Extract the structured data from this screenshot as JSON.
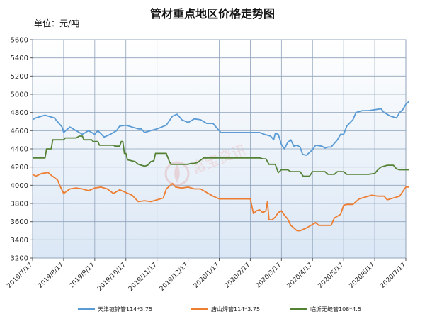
{
  "chart_data": {
    "type": "line",
    "title": "管材重点地区价格走势图",
    "unit": "单位：元/吨",
    "ylim": [
      3200,
      5600
    ],
    "yticks": [
      3200,
      3400,
      3600,
      3800,
      4000,
      4200,
      4400,
      4600,
      4800,
      5000,
      5200,
      5400,
      5600
    ],
    "grid": true,
    "legend_position": "bottom",
    "xticks": [
      "2019/7/17",
      "2019/8/17",
      "2019/9/17",
      "2019/10/17",
      "2019/11/17",
      "2019/12/17",
      "2020/1/17",
      "2020/2/17",
      "2020/3/17",
      "2020/4/17",
      "2020/5/17",
      "2020/6/17",
      "2020/7/17"
    ],
    "series": [
      {
        "name": "天津镀锌管114*3.75",
        "color": "#5b9bd5",
        "points": [
          [
            0,
            4720
          ],
          [
            0.1,
            4740
          ],
          [
            0.4,
            4770
          ],
          [
            0.7,
            4740
          ],
          [
            0.8,
            4700
          ],
          [
            0.95,
            4640
          ],
          [
            1.0,
            4580
          ],
          [
            1.2,
            4640
          ],
          [
            1.5,
            4580
          ],
          [
            1.6,
            4560
          ],
          [
            1.8,
            4600
          ],
          [
            2.0,
            4560
          ],
          [
            2.1,
            4600
          ],
          [
            2.3,
            4530
          ],
          [
            2.5,
            4560
          ],
          [
            2.7,
            4600
          ],
          [
            2.8,
            4650
          ],
          [
            3.0,
            4660
          ],
          [
            3.2,
            4640
          ],
          [
            3.4,
            4620
          ],
          [
            3.5,
            4620
          ],
          [
            3.6,
            4580
          ],
          [
            3.8,
            4600
          ],
          [
            4.0,
            4620
          ],
          [
            4.3,
            4660
          ],
          [
            4.5,
            4760
          ],
          [
            4.65,
            4780
          ],
          [
            4.8,
            4720
          ],
          [
            5.0,
            4690
          ],
          [
            5.2,
            4730
          ],
          [
            5.4,
            4720
          ],
          [
            5.6,
            4680
          ],
          [
            5.8,
            4680
          ],
          [
            6.0,
            4600
          ],
          [
            6.05,
            4580
          ],
          [
            6.5,
            4580
          ],
          [
            7.0,
            4580
          ],
          [
            7.3,
            4580
          ],
          [
            7.45,
            4560
          ],
          [
            7.65,
            4540
          ],
          [
            7.75,
            4500
          ],
          [
            7.8,
            4570
          ],
          [
            7.9,
            4560
          ],
          [
            8.0,
            4450
          ],
          [
            8.1,
            4400
          ],
          [
            8.2,
            4470
          ],
          [
            8.3,
            4500
          ],
          [
            8.4,
            4430
          ],
          [
            8.5,
            4440
          ],
          [
            8.6,
            4420
          ],
          [
            8.68,
            4340
          ],
          [
            8.8,
            4330
          ],
          [
            9.0,
            4390
          ],
          [
            9.1,
            4440
          ],
          [
            9.3,
            4430
          ],
          [
            9.4,
            4410
          ],
          [
            9.5,
            4420
          ],
          [
            9.6,
            4420
          ],
          [
            9.8,
            4500
          ],
          [
            9.9,
            4560
          ],
          [
            10.0,
            4560
          ],
          [
            10.1,
            4650
          ],
          [
            10.3,
            4720
          ],
          [
            10.4,
            4800
          ],
          [
            10.6,
            4820
          ],
          [
            10.8,
            4820
          ],
          [
            11.0,
            4830
          ],
          [
            11.2,
            4840
          ],
          [
            11.3,
            4800
          ],
          [
            11.5,
            4760
          ],
          [
            11.7,
            4740
          ],
          [
            11.8,
            4800
          ],
          [
            11.9,
            4830
          ],
          [
            12.0,
            4890
          ],
          [
            12.1,
            4920
          ]
        ]
      },
      {
        "name": "唐山焊管114*3.75",
        "color": "#ed7d31",
        "points": [
          [
            0,
            4120
          ],
          [
            0.1,
            4100
          ],
          [
            0.3,
            4130
          ],
          [
            0.5,
            4140
          ],
          [
            0.6,
            4110
          ],
          [
            0.8,
            4060
          ],
          [
            0.9,
            3980
          ],
          [
            1.0,
            3910
          ],
          [
            1.2,
            3960
          ],
          [
            1.4,
            3970
          ],
          [
            1.6,
            3960
          ],
          [
            1.8,
            3940
          ],
          [
            2.0,
            3970
          ],
          [
            2.2,
            3980
          ],
          [
            2.4,
            3960
          ],
          [
            2.6,
            3910
          ],
          [
            2.8,
            3950
          ],
          [
            3.0,
            3920
          ],
          [
            3.2,
            3890
          ],
          [
            3.4,
            3820
          ],
          [
            3.6,
            3830
          ],
          [
            3.8,
            3820
          ],
          [
            4.0,
            3840
          ],
          [
            4.2,
            3860
          ],
          [
            4.3,
            3960
          ],
          [
            4.5,
            4020
          ],
          [
            4.6,
            3980
          ],
          [
            4.8,
            3970
          ],
          [
            5.0,
            3980
          ],
          [
            5.2,
            3960
          ],
          [
            5.4,
            3960
          ],
          [
            5.6,
            3920
          ],
          [
            5.8,
            3880
          ],
          [
            6.0,
            3850
          ],
          [
            6.5,
            3850
          ],
          [
            6.9,
            3850
          ],
          [
            7.0,
            3850
          ],
          [
            7.1,
            3690
          ],
          [
            7.2,
            3720
          ],
          [
            7.3,
            3730
          ],
          [
            7.4,
            3700
          ],
          [
            7.5,
            3720
          ],
          [
            7.55,
            3820
          ],
          [
            7.6,
            3620
          ],
          [
            7.7,
            3620
          ],
          [
            7.8,
            3650
          ],
          [
            7.9,
            3700
          ],
          [
            8.0,
            3720
          ],
          [
            8.1,
            3670
          ],
          [
            8.2,
            3630
          ],
          [
            8.3,
            3560
          ],
          [
            8.4,
            3530
          ],
          [
            8.5,
            3500
          ],
          [
            8.6,
            3500
          ],
          [
            8.8,
            3530
          ],
          [
            9.0,
            3570
          ],
          [
            9.1,
            3590
          ],
          [
            9.2,
            3560
          ],
          [
            9.4,
            3560
          ],
          [
            9.6,
            3560
          ],
          [
            9.7,
            3640
          ],
          [
            9.9,
            3680
          ],
          [
            10.0,
            3780
          ],
          [
            10.1,
            3790
          ],
          [
            10.3,
            3790
          ],
          [
            10.5,
            3850
          ],
          [
            10.7,
            3870
          ],
          [
            10.9,
            3890
          ],
          [
            11.1,
            3880
          ],
          [
            11.3,
            3880
          ],
          [
            11.4,
            3840
          ],
          [
            11.6,
            3860
          ],
          [
            11.8,
            3880
          ],
          [
            11.9,
            3930
          ],
          [
            12.0,
            3980
          ],
          [
            12.1,
            3980
          ]
        ]
      },
      {
        "name": "临沂无缝管108*4.5",
        "color": "#548235",
        "points": [
          [
            0,
            4300
          ],
          [
            0.4,
            4300
          ],
          [
            0.45,
            4400
          ],
          [
            0.6,
            4400
          ],
          [
            0.65,
            4500
          ],
          [
            1.0,
            4500
          ],
          [
            1.05,
            4520
          ],
          [
            1.4,
            4520
          ],
          [
            1.5,
            4540
          ],
          [
            1.6,
            4540
          ],
          [
            1.65,
            4500
          ],
          [
            1.9,
            4500
          ],
          [
            1.95,
            4480
          ],
          [
            2.1,
            4480
          ],
          [
            2.15,
            4440
          ],
          [
            2.6,
            4440
          ],
          [
            2.65,
            4430
          ],
          [
            2.8,
            4430
          ],
          [
            2.85,
            4480
          ],
          [
            2.9,
            4480
          ],
          [
            2.95,
            4350
          ],
          [
            3.0,
            4350
          ],
          [
            3.05,
            4280
          ],
          [
            3.3,
            4260
          ],
          [
            3.4,
            4230
          ],
          [
            3.5,
            4220
          ],
          [
            3.6,
            4210
          ],
          [
            3.7,
            4220
          ],
          [
            3.8,
            4260
          ],
          [
            3.9,
            4270
          ],
          [
            3.95,
            4350
          ],
          [
            4.3,
            4350
          ],
          [
            4.4,
            4260
          ],
          [
            4.45,
            4230
          ],
          [
            4.6,
            4230
          ],
          [
            5.0,
            4230
          ],
          [
            5.1,
            4240
          ],
          [
            5.2,
            4240
          ],
          [
            5.3,
            4250
          ],
          [
            5.5,
            4300
          ],
          [
            5.6,
            4300
          ],
          [
            6.5,
            4300
          ],
          [
            7.3,
            4300
          ],
          [
            7.4,
            4290
          ],
          [
            7.5,
            4290
          ],
          [
            7.6,
            4230
          ],
          [
            7.8,
            4230
          ],
          [
            7.9,
            4140
          ],
          [
            8.0,
            4170
          ],
          [
            8.2,
            4170
          ],
          [
            8.3,
            4150
          ],
          [
            8.6,
            4150
          ],
          [
            8.7,
            4100
          ],
          [
            8.9,
            4100
          ],
          [
            9.0,
            4150
          ],
          [
            9.4,
            4150
          ],
          [
            9.5,
            4120
          ],
          [
            9.7,
            4120
          ],
          [
            9.8,
            4150
          ],
          [
            10.0,
            4150
          ],
          [
            10.1,
            4120
          ],
          [
            10.3,
            4120
          ],
          [
            10.8,
            4120
          ],
          [
            11.0,
            4130
          ],
          [
            11.1,
            4170
          ],
          [
            11.2,
            4200
          ],
          [
            11.4,
            4220
          ],
          [
            11.6,
            4220
          ],
          [
            11.7,
            4180
          ],
          [
            11.8,
            4170
          ],
          [
            12.1,
            4170
          ]
        ]
      }
    ]
  },
  "watermark": "富宝资讯"
}
